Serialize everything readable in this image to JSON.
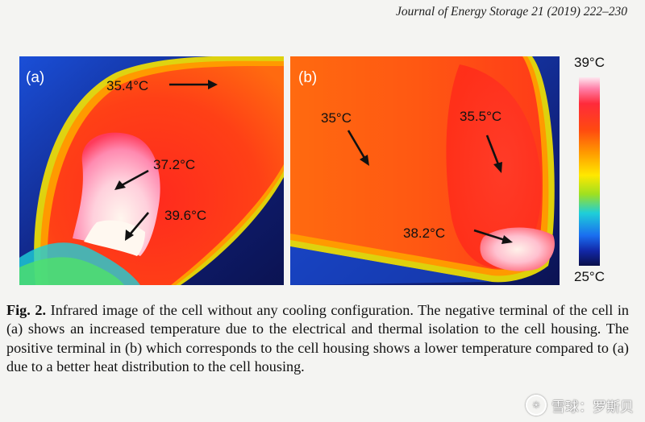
{
  "journal": "Journal of Energy Storage 21 (2019) 222–230",
  "panel_a": {
    "label": "(a)",
    "annotations": [
      "35.4°C",
      "37.2°C",
      "39.6°C"
    ]
  },
  "panel_b": {
    "label": "(b)",
    "annotations": [
      "35°C",
      "35.5°C",
      "38.2°C"
    ]
  },
  "scale": {
    "max": "39°C",
    "min": "25°C"
  },
  "caption": {
    "label": "Fig. 2.",
    "text": "Infrared image of the cell without any cooling configuration. The negative terminal of the cell in (a) shows an increased temperature due to the electrical and thermal isolation to the cell housing. The positive terminal in (b) which corresponds to the cell housing shows a lower temperature compared to (a) due to a better heat distribution to the cell housing."
  },
  "watermark": {
    "text": "雪球：罗斯贝"
  },
  "colors": {
    "hot_white": "#fff3ea",
    "hot_pink": "#ff8ab0",
    "red": "#ff2d1a",
    "orange": "#ff5a12",
    "yellow": "#ffe000",
    "cyan": "#1ecfd8",
    "blue": "#1a4fd8",
    "navy": "#0b1352"
  }
}
